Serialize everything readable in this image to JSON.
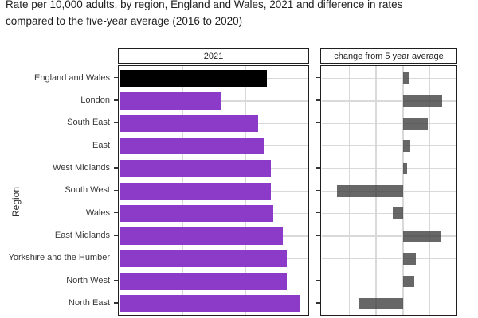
{
  "title": {
    "line1": "Rate per 10,000 adults, by region, England and Wales, 2021 and difference in rates",
    "line2": "compared to the five-year average (2016 to 2020)"
  },
  "chart_data": {
    "type": "bar",
    "orientation": "horizontal",
    "y_axis_label": "Region",
    "facets": [
      {
        "label": "2021",
        "axis": {
          "min": 0,
          "max": 3,
          "gridline_values": [
            1,
            2
          ],
          "tick_labels_visible": false
        }
      },
      {
        "label": "change from 5 year average",
        "axis": {
          "min": -3,
          "max": 2,
          "gridline_values": [
            -2,
            -1,
            0,
            1
          ],
          "tick_labels_visible": false
        }
      }
    ],
    "axis_note": "x-axis tick labels are cropped out of the screenshot; values are expressed in gridline units",
    "categories": [
      "England and Wales",
      "London",
      "South East",
      "East",
      "West Midlands",
      "South West",
      "Wales",
      "East Midlands",
      "Yorkshire and the Humber",
      "North West",
      "North East"
    ],
    "series": [
      {
        "name": "2021",
        "values": [
          2.33,
          1.62,
          2.2,
          2.3,
          2.4,
          2.4,
          2.44,
          2.59,
          2.65,
          2.65,
          2.86
        ]
      },
      {
        "name": "change from 5 year average",
        "values": [
          0.23,
          1.45,
          0.93,
          0.26,
          0.15,
          -2.46,
          -0.38,
          1.39,
          0.49,
          0.41,
          -1.65
        ]
      }
    ],
    "highlight_category": "England and Wales",
    "legend_visible": false,
    "grid": true,
    "colors": {
      "bar_2021": "#8c3bc8",
      "bar_2021_highlight": "#000000",
      "bar_change": "rgba(60,60,60,0.78)",
      "gridline": "#d9d9d9",
      "panel_border": "#1f1f1f",
      "text": "#1f1f1f"
    }
  }
}
